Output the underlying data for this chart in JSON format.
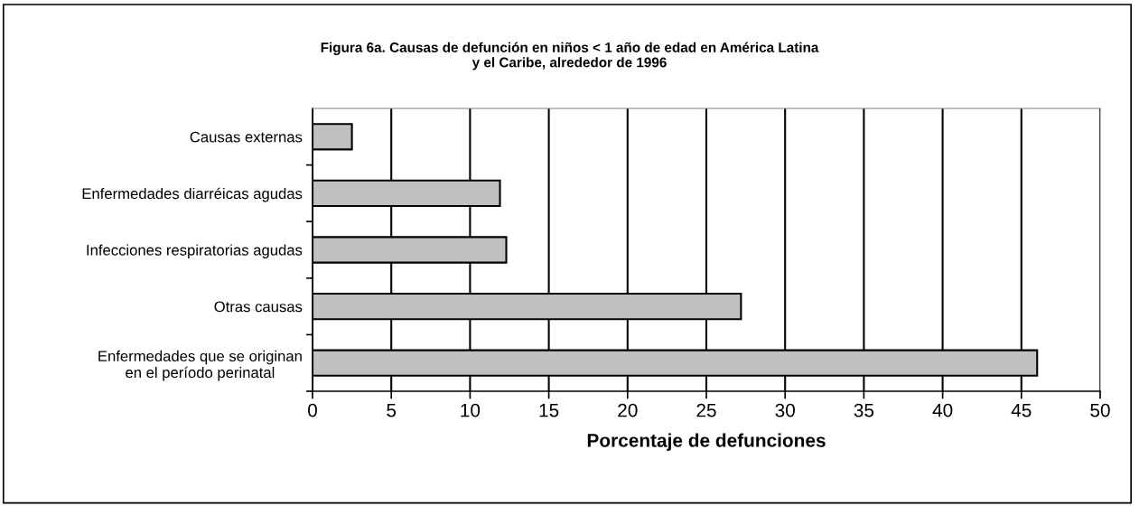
{
  "chart_data": {
    "type": "bar",
    "orientation": "horizontal",
    "title": "Figura 6a. Causas de defunción en niños < 1 año de edad en América Latina\ny el Caribe, alrededor de 1996",
    "xlabel": "Porcentaje de defunciones",
    "categories": [
      "Causas externas",
      "Enfermedades diarréicas agudas",
      "Infecciones respiratorias agudas",
      "Otras causas",
      "Enfermedades que se originan\nen el período perinatal"
    ],
    "values": [
      2.5,
      11.9,
      12.3,
      27.2,
      46.0
    ],
    "color": "#c0c0c0",
    "xlim": [
      0,
      50
    ],
    "xticks": [
      0,
      5,
      10,
      15,
      20,
      25,
      30,
      35,
      40,
      45,
      50
    ],
    "grid": "x",
    "legend": false
  }
}
